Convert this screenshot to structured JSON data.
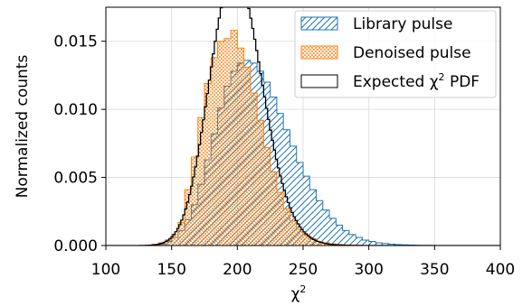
{
  "chart_data": {
    "type": "histogram",
    "title": "",
    "xlabel_base": "χ",
    "xlabel_sup": "2",
    "ylabel": "Normalized counts",
    "xlim": [
      100,
      400
    ],
    "ylim": [
      0,
      0.0175
    ],
    "xticks": [
      100,
      150,
      200,
      250,
      300,
      350,
      400
    ],
    "xtick_labels": [
      "100",
      "150",
      "200",
      "250",
      "300",
      "350",
      "400"
    ],
    "yticks": [
      0.0,
      0.005,
      0.01,
      0.015
    ],
    "ytick_labels": [
      "0.000",
      "0.005",
      "0.010",
      "0.015"
    ],
    "grid": true,
    "legend_position": "upper-right",
    "colors": {
      "library": "#1f77b4",
      "denoised": "#ff7f0e",
      "expected": "#000000"
    },
    "series": [
      {
        "name": "Library pulse",
        "style": "hatched-diagonal",
        "bin_edges": [
          140,
          145,
          150,
          155,
          160,
          165,
          170,
          175,
          180,
          185,
          190,
          195,
          200,
          205,
          210,
          215,
          220,
          225,
          230,
          235,
          240,
          245,
          250,
          255,
          260,
          265,
          270,
          275,
          280,
          285,
          290,
          295,
          300,
          305,
          310,
          315,
          320,
          325,
          330,
          335,
          340,
          345,
          350
        ],
        "values": [
          0.0001,
          0.0003,
          0.0006,
          0.0011,
          0.0019,
          0.003,
          0.0045,
          0.0063,
          0.0082,
          0.0101,
          0.0117,
          0.0128,
          0.0134,
          0.0136,
          0.0134,
          0.0128,
          0.012,
          0.0109,
          0.0097,
          0.0085,
          0.0073,
          0.0061,
          0.0051,
          0.0041,
          0.0033,
          0.0026,
          0.002,
          0.0015,
          0.0011,
          0.0008,
          0.0006,
          0.0004,
          0.0003,
          0.0002,
          0.00015,
          0.0001,
          7e-05,
          5e-05,
          3e-05,
          2e-05,
          1e-05,
          1e-05
        ]
      },
      {
        "name": "Denoised pulse",
        "style": "dotted",
        "bin_edges": [
          135,
          140,
          145,
          150,
          155,
          160,
          165,
          170,
          175,
          180,
          185,
          190,
          195,
          200,
          205,
          210,
          215,
          220,
          225,
          230,
          235,
          240,
          245,
          250,
          255,
          260,
          265,
          270,
          275,
          280,
          285,
          290,
          295,
          300,
          305,
          310
        ],
        "values": [
          0.0001,
          0.0002,
          0.0004,
          0.0008,
          0.0017,
          0.0041,
          0.0065,
          0.0094,
          0.0119,
          0.0138,
          0.015,
          0.0152,
          0.0158,
          0.0145,
          0.0131,
          0.0112,
          0.0092,
          0.0072,
          0.0054,
          0.0039,
          0.0027,
          0.0018,
          0.0012,
          0.0008,
          0.0005,
          0.0003,
          0.0002,
          0.00012,
          8e-05,
          5e-05,
          3e-05,
          2e-05,
          1e-05,
          1e-05,
          5e-06
        ]
      },
      {
        "name": "Expected χ² PDF",
        "style": "step-line",
        "dof": 200,
        "x_range": [
          100,
          400
        ]
      }
    ],
    "legend": {
      "library": "Library pulse",
      "denoised": "Denoised pulse",
      "expected_prefix": "Expected ",
      "expected_chi": "χ",
      "expected_sup": "2",
      "expected_suffix": " PDF"
    }
  }
}
